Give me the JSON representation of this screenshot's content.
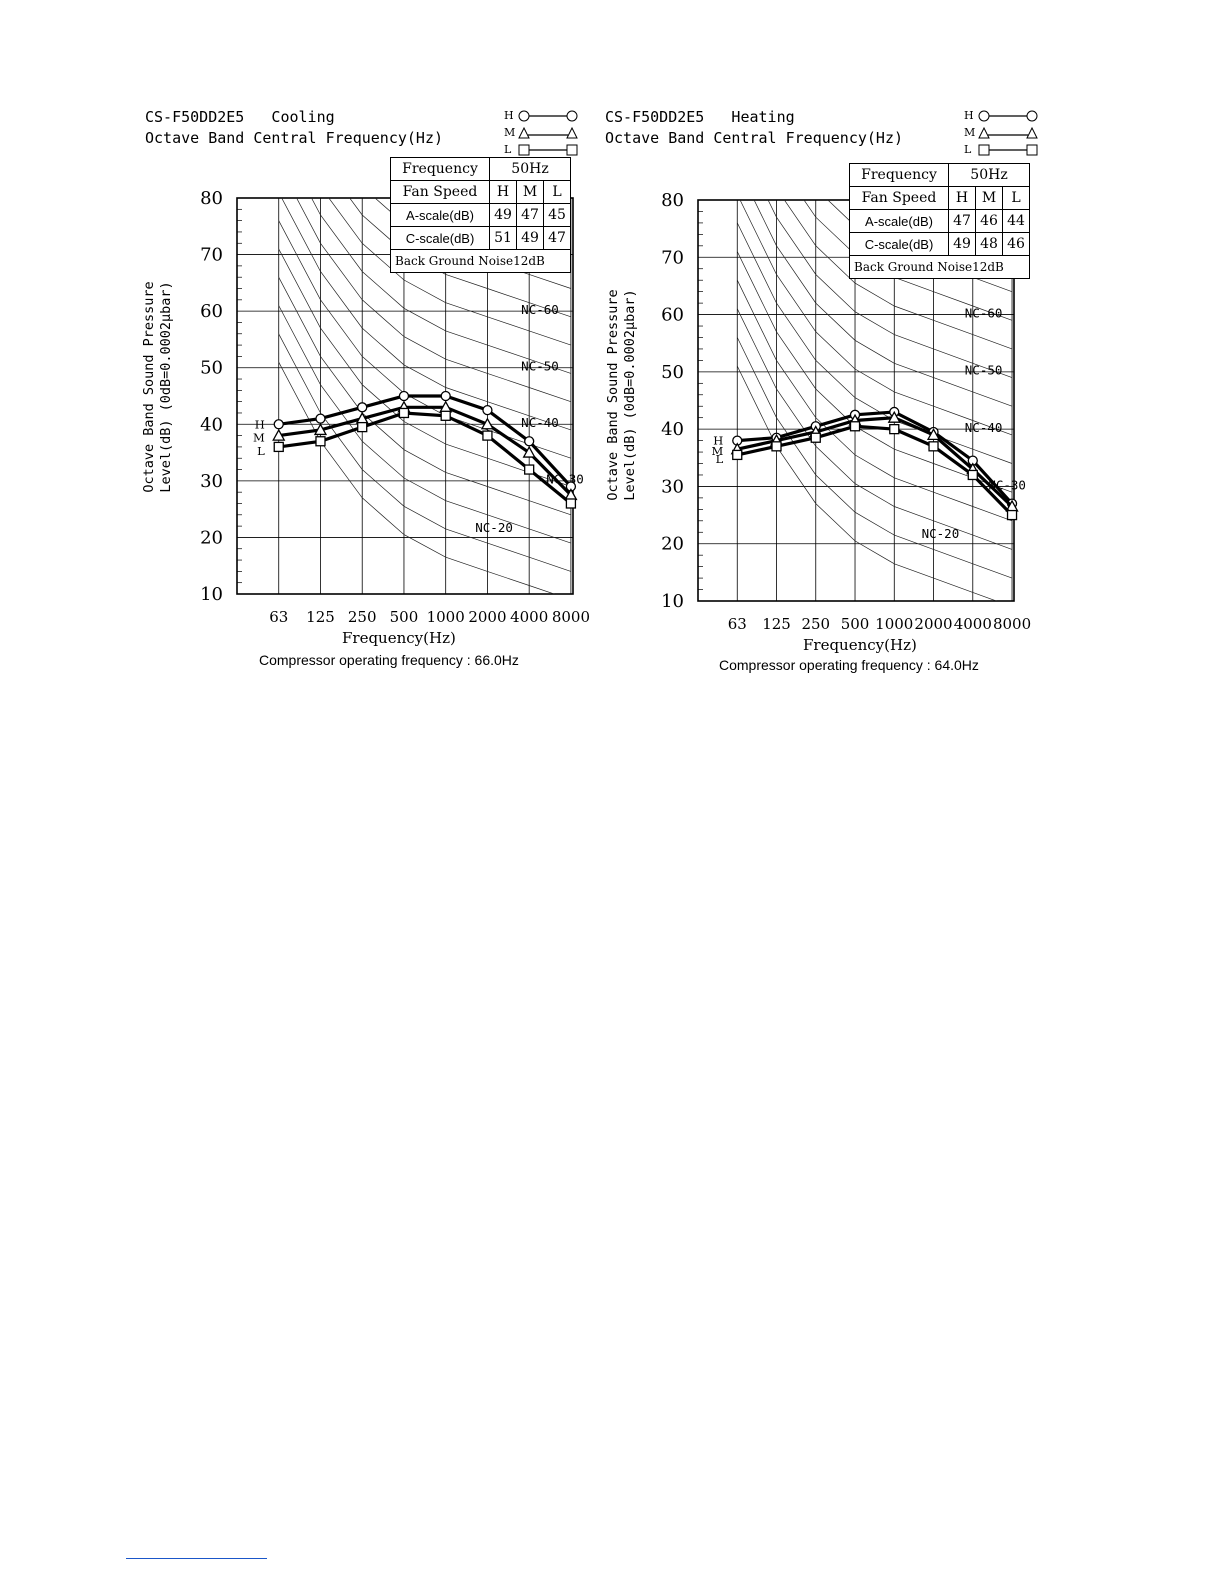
{
  "chart_data": [
    {
      "type": "line",
      "title": "CS-F50DD2E5   Cooling",
      "subtitle": "Octave Band Central Frequency(Hz)",
      "xlabel": "Frequency(Hz)",
      "ylabel": "Octave Band Sound Pressure",
      "ylabel2": "Level(dB) (0dB=0.0002μbar)",
      "caption": "Compressor operating frequency : 66.0Hz",
      "x_ticks": [
        "63",
        "125",
        "250",
        "500",
        "1000",
        "2000",
        "4000",
        "8000"
      ],
      "y_ticks": [
        "80",
        "70",
        "60",
        "50",
        "40",
        "30",
        "20",
        "10"
      ],
      "ylim": [
        10,
        80
      ],
      "nc_labels": [
        "NC-60",
        "NC-50",
        "NC-40",
        "NC-30",
        "NC-20"
      ],
      "legend": [
        {
          "key": "H",
          "marker": "circle"
        },
        {
          "key": "M",
          "marker": "triangle"
        },
        {
          "key": "L",
          "marker": "square"
        }
      ],
      "series": [
        {
          "name": "H",
          "marker": "circle",
          "values": [
            40,
            41,
            43,
            45,
            45,
            42.5,
            37,
            29
          ]
        },
        {
          "name": "M",
          "marker": "triangle",
          "values": [
            38,
            39,
            41,
            43,
            43,
            40,
            35,
            27.5
          ]
        },
        {
          "name": "L",
          "marker": "square",
          "values": [
            36,
            37,
            39.5,
            42,
            41.5,
            38,
            32,
            26
          ]
        }
      ],
      "table": {
        "freq_label": "Frequency",
        "freq_value": "50Hz",
        "fan_label": "Fan Speed",
        "fan_h": "H",
        "fan_m": "M",
        "fan_l": "L",
        "a_label": "A-scale(dB)",
        "a_h": "49",
        "a_m": "47",
        "a_l": "45",
        "c_label": "C-scale(dB)",
        "c_h": "51",
        "c_m": "49",
        "c_l": "47",
        "bg_label": "Back Ground Noise12dB"
      }
    },
    {
      "type": "line",
      "title": "CS-F50DD2E5   Heating",
      "subtitle": "Octave Band Central Frequency(Hz)",
      "xlabel": "Frequency(Hz)",
      "ylabel": "Octave Band Sound Pressure",
      "ylabel2": "Level(dB) (0dB=0.0002μbar)",
      "caption": "Compressor operating frequency : 64.0Hz",
      "x_ticks": [
        "63",
        "125",
        "250",
        "500",
        "1000",
        "2000",
        "4000",
        "8000"
      ],
      "y_ticks": [
        "80",
        "70",
        "60",
        "50",
        "40",
        "30",
        "20",
        "10"
      ],
      "ylim": [
        10,
        80
      ],
      "nc_labels": [
        "NC-60",
        "NC-50",
        "NC-40",
        "NC-30",
        "NC-20"
      ],
      "legend": [
        {
          "key": "H",
          "marker": "circle"
        },
        {
          "key": "M",
          "marker": "triangle"
        },
        {
          "key": "L",
          "marker": "square"
        }
      ],
      "series": [
        {
          "name": "H",
          "marker": "circle",
          "values": [
            38,
            38.5,
            40.5,
            42.5,
            43,
            39.5,
            34.5,
            27
          ]
        },
        {
          "name": "M",
          "marker": "triangle",
          "values": [
            36.5,
            38,
            39.5,
            41.5,
            42,
            39,
            33,
            26.5
          ]
        },
        {
          "name": "L",
          "marker": "square",
          "values": [
            35.5,
            37,
            38.5,
            40.5,
            40,
            37,
            32,
            25
          ]
        }
      ],
      "table": {
        "freq_label": "Frequency",
        "freq_value": "50Hz",
        "fan_label": "Fan Speed",
        "fan_h": "H",
        "fan_m": "M",
        "fan_l": "L",
        "a_label": "A-scale(dB)",
        "a_h": "47",
        "a_m": "46",
        "a_l": "44",
        "c_label": "C-scale(dB)",
        "c_h": "49",
        "c_m": "48",
        "c_l": "46",
        "bg_label": "Back Ground Noise12dB"
      }
    }
  ]
}
